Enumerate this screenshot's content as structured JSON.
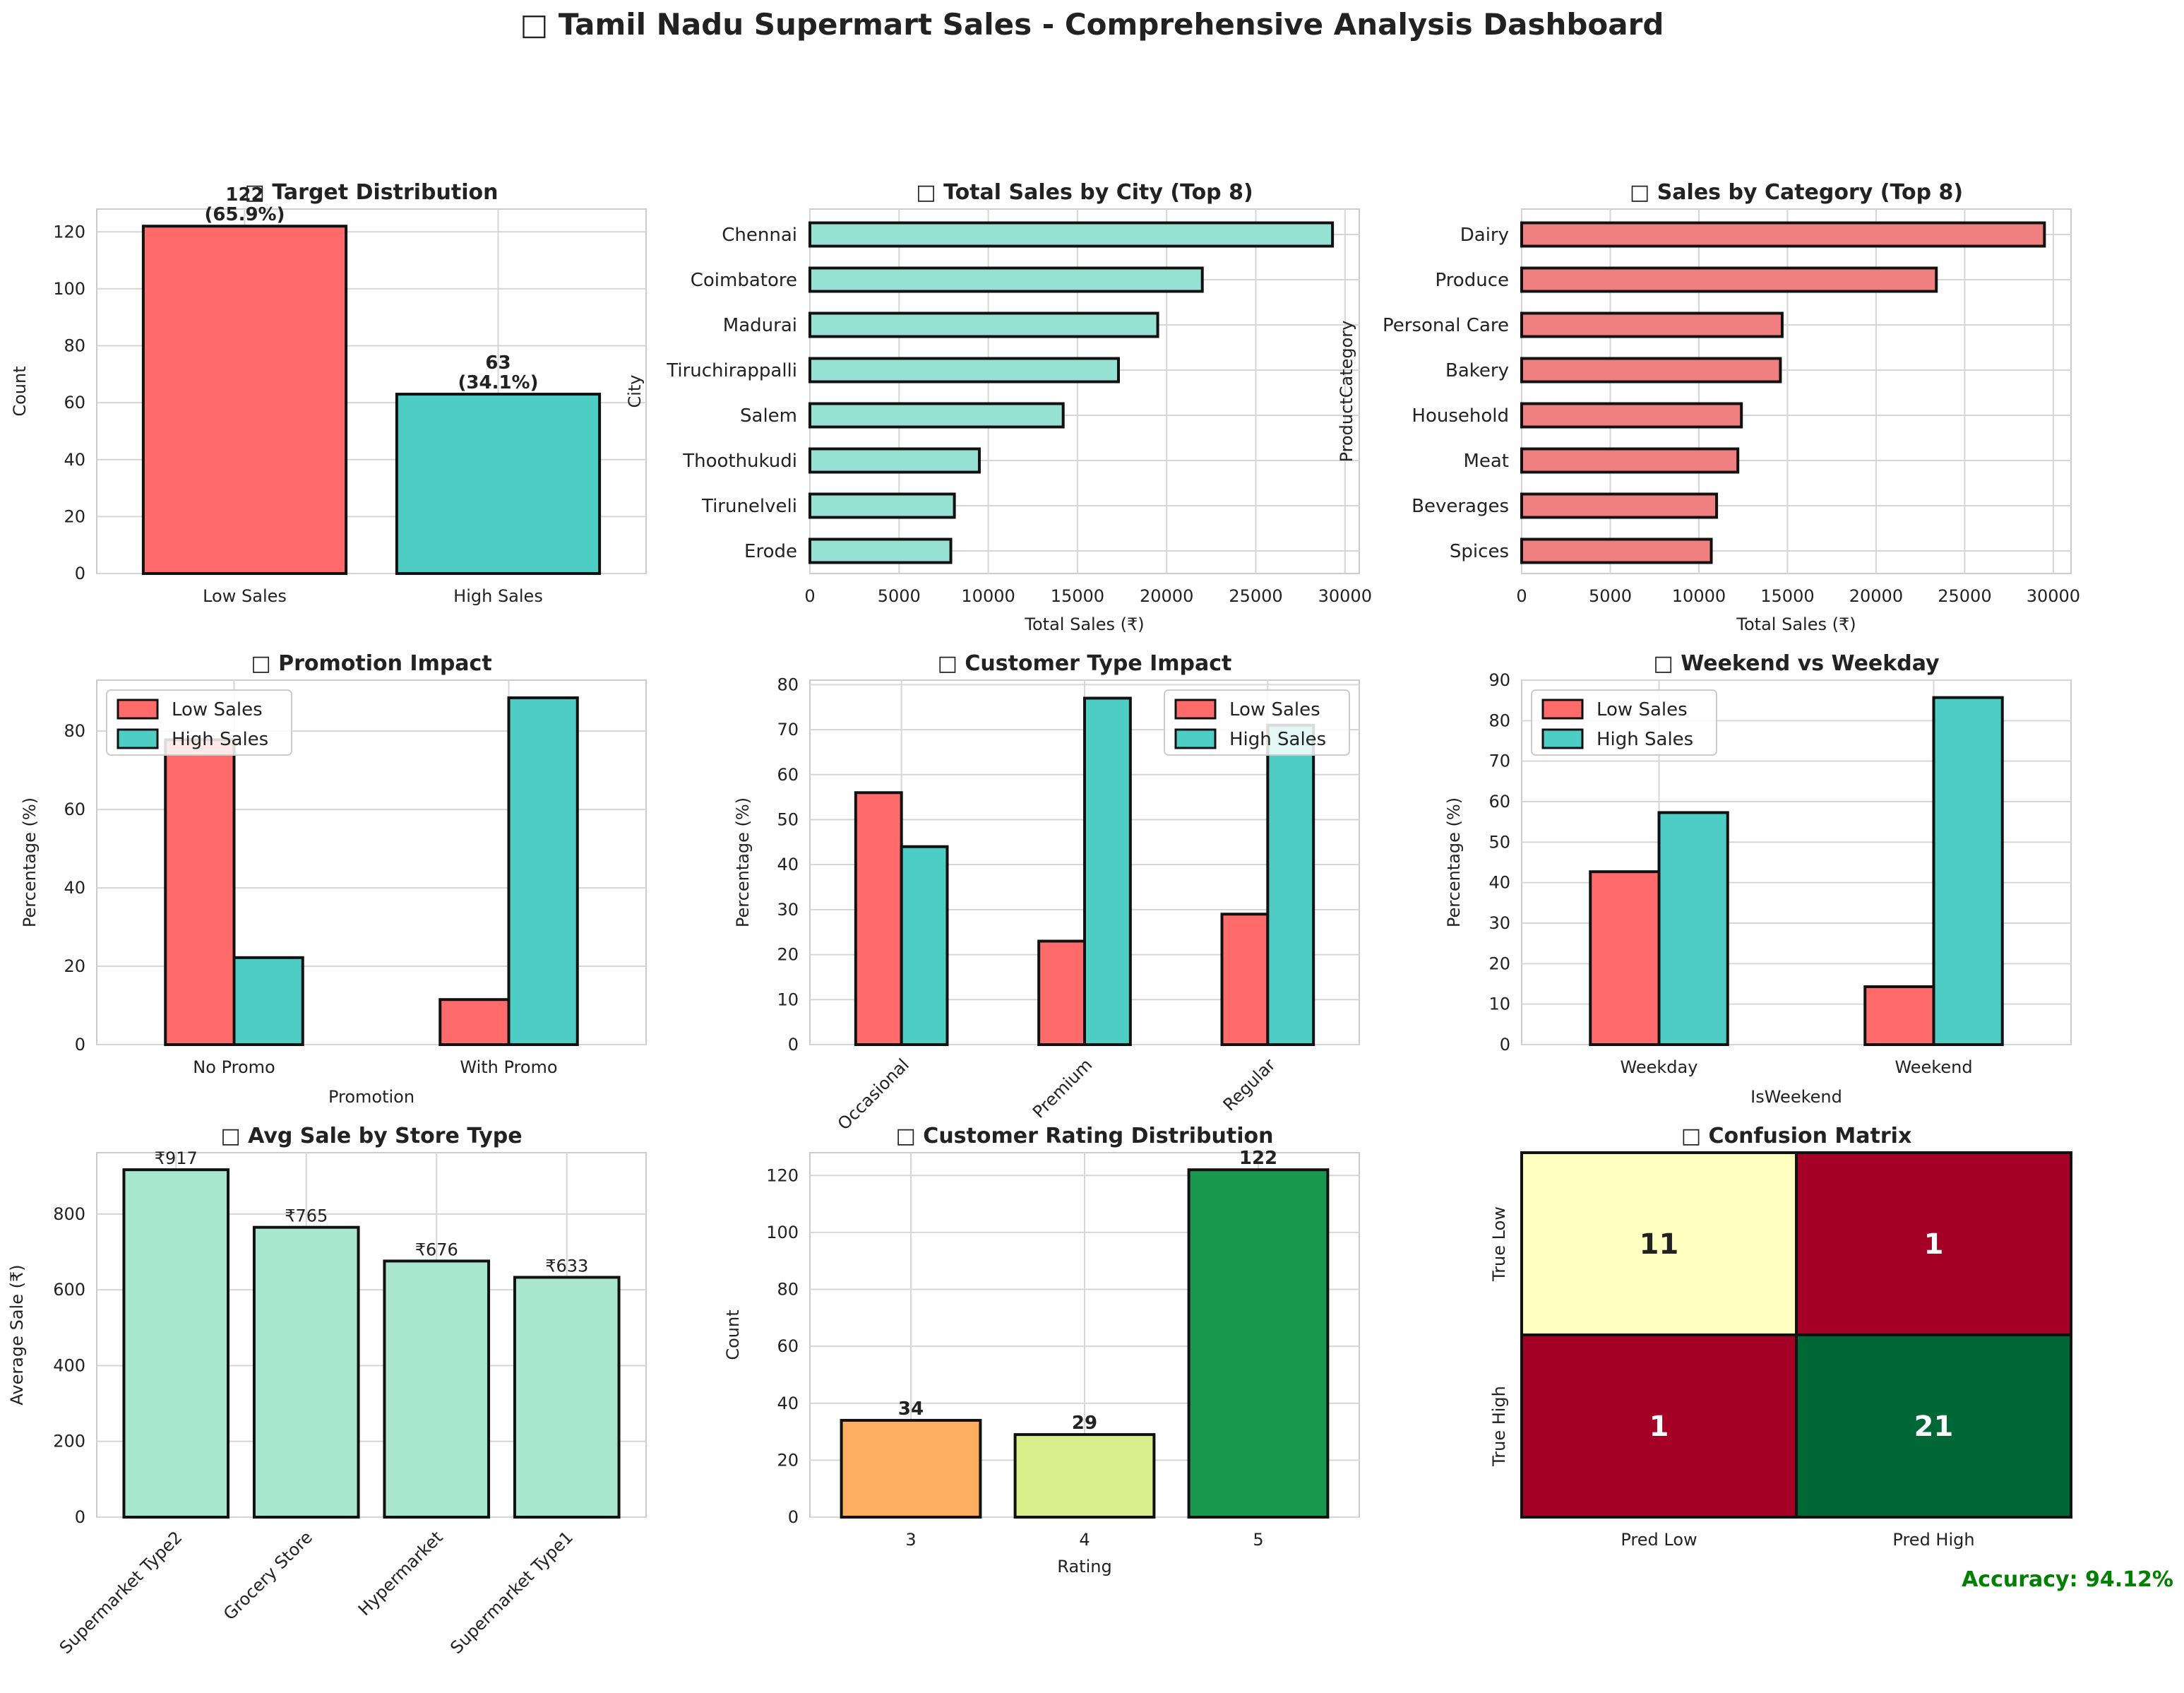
{
  "dashboard": {
    "title": "□ Tamil Nadu Supermart Sales - Comprehensive Analysis Dashboard",
    "accuracy": "Accuracy: 94.12%"
  },
  "colors": {
    "low": "#FF6B6B",
    "high": "#4ECDC4",
    "city_bar": "#96E0D4",
    "category_bar": "#F08080",
    "store_bar": "#A8E6CF",
    "rating": [
      "#FDAE61",
      "#D9EF8B",
      "#1A9850"
    ],
    "accuracy_text": "#008000"
  },
  "chart_data": [
    {
      "id": "target",
      "type": "bar",
      "title": "□ Target Distribution",
      "categories": [
        "Low Sales",
        "High Sales"
      ],
      "values": [
        122,
        63
      ],
      "data_labels": [
        "122\n(65.9%)",
        "63\n(34.1%)"
      ],
      "xlabel": "",
      "ylabel": "Count",
      "ylim": [
        0,
        128
      ],
      "yticks": [
        0,
        20,
        40,
        60,
        80,
        100,
        120
      ]
    },
    {
      "id": "city",
      "type": "bar",
      "orientation": "horizontal",
      "title": "□ Total Sales by City (Top 8)",
      "categories": [
        "Chennai",
        "Coimbatore",
        "Madurai",
        "Tiruchirappalli",
        "Salem",
        "Thoothukudi",
        "Tirunelveli",
        "Erode"
      ],
      "values": [
        29300,
        22000,
        19500,
        17300,
        14200,
        9500,
        8100,
        7900
      ],
      "xlabel": "Total Sales (₹)",
      "ylabel": "City",
      "xlim": [
        0,
        30800
      ],
      "xticks": [
        0,
        5000,
        10000,
        15000,
        20000,
        25000,
        30000
      ]
    },
    {
      "id": "category",
      "type": "bar",
      "orientation": "horizontal",
      "title": "□ Sales by Category (Top 8)",
      "categories": [
        "Dairy",
        "Produce",
        "Personal Care",
        "Bakery",
        "Household",
        "Meat",
        "Beverages",
        "Spices"
      ],
      "values": [
        29500,
        23400,
        14700,
        14600,
        12400,
        12200,
        11000,
        10700
      ],
      "xlabel": "Total Sales (₹)",
      "ylabel": "ProductCategory",
      "xlim": [
        0,
        31000
      ],
      "xticks": [
        0,
        5000,
        10000,
        15000,
        20000,
        25000,
        30000
      ]
    },
    {
      "id": "promo",
      "type": "bar",
      "title": "□ Promotion Impact",
      "categories": [
        "No Promo",
        "With Promo"
      ],
      "series": [
        {
          "name": "Low Sales",
          "values": [
            77.8,
            11.5
          ]
        },
        {
          "name": "High Sales",
          "values": [
            22.2,
            88.5
          ]
        }
      ],
      "xlabel": "Promotion",
      "ylabel": "Percentage (%)",
      "ylim": [
        0,
        93
      ],
      "yticks": [
        0,
        20,
        40,
        60,
        80
      ],
      "legend": "top-left"
    },
    {
      "id": "customer",
      "type": "bar",
      "title": "□ Customer Type Impact",
      "categories": [
        "Occasional",
        "Premium",
        "Regular"
      ],
      "series": [
        {
          "name": "Low Sales",
          "values": [
            56,
            23,
            29
          ]
        },
        {
          "name": "High Sales",
          "values": [
            44,
            77,
            71
          ]
        }
      ],
      "xlabel": "",
      "ylabel": "Percentage (%)",
      "ylim": [
        0,
        81
      ],
      "yticks": [
        0,
        10,
        20,
        30,
        40,
        50,
        60,
        70,
        80
      ],
      "legend": "top-right"
    },
    {
      "id": "weekend",
      "type": "bar",
      "title": "□ Weekend vs Weekday",
      "categories": [
        "Weekday",
        "Weekend"
      ],
      "series": [
        {
          "name": "Low Sales",
          "values": [
            42.7,
            14.3
          ]
        },
        {
          "name": "High Sales",
          "values": [
            57.3,
            85.7
          ]
        }
      ],
      "xlabel": "IsWeekend",
      "ylabel": "Percentage (%)",
      "ylim": [
        0,
        90
      ],
      "yticks": [
        0,
        10,
        20,
        30,
        40,
        50,
        60,
        70,
        80,
        90
      ],
      "legend": "top-left"
    },
    {
      "id": "store",
      "type": "bar",
      "title": "□ Avg Sale by Store Type",
      "categories": [
        "Supermarket Type2",
        "Grocery Store",
        "Hypermarket",
        "Supermarket Type1"
      ],
      "values": [
        917,
        765,
        676,
        633
      ],
      "data_labels": [
        "₹917",
        "₹765",
        "₹676",
        "₹633"
      ],
      "xlabel": "",
      "ylabel": "Average Sale (₹)",
      "ylim": [
        0,
        962
      ],
      "yticks": [
        0,
        200,
        400,
        600,
        800
      ]
    },
    {
      "id": "rating",
      "type": "bar",
      "title": "□ Customer Rating Distribution",
      "categories": [
        "3",
        "4",
        "5"
      ],
      "values": [
        34,
        29,
        122
      ],
      "data_labels": [
        "34",
        "29",
        "122"
      ],
      "xlabel": "Rating",
      "ylabel": "Count",
      "ylim": [
        0,
        128
      ],
      "yticks": [
        0,
        20,
        40,
        60,
        80,
        100,
        120
      ]
    },
    {
      "id": "confusion",
      "type": "heatmap",
      "title": "□ Confusion Matrix",
      "xlabels": [
        "Pred Low",
        "Pred High"
      ],
      "ylabels": [
        "True Low",
        "True High"
      ],
      "values": [
        [
          11,
          1
        ],
        [
          1,
          21
        ]
      ],
      "cell_colors": [
        [
          "#FFFFBF",
          "#A50026"
        ],
        [
          "#A50026",
          "#006837"
        ]
      ],
      "text_colors": [
        [
          "#222222",
          "#ffffff"
        ],
        [
          "#ffffff",
          "#ffffff"
        ]
      ]
    }
  ]
}
